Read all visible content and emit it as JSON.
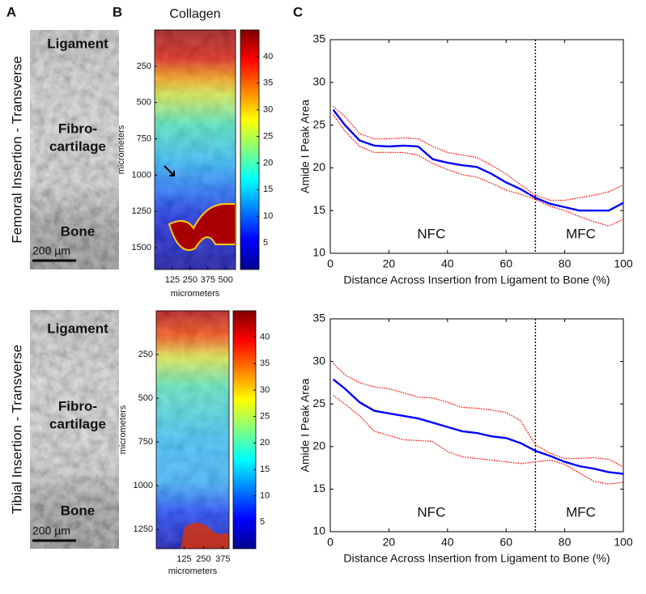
{
  "panel_labels": [
    "A",
    "B",
    "C"
  ],
  "histology": [
    {
      "side_label": "Femoral Insertion - Transverse",
      "regions": [
        "Ligament",
        "Fibro-",
        "cartilage",
        "Bone"
      ],
      "scale_bar": "200 µm"
    },
    {
      "side_label": "Tibial Insertion - Transverse",
      "regions": [
        "Ligament",
        "Fibro-",
        "cartilage",
        "Bone"
      ],
      "scale_bar": "200 µm"
    }
  ],
  "collagen_title": "Collagen",
  "heatmaps": [
    {
      "ylabel": "micrometers",
      "xlabel": "micrometers",
      "ylim": [
        0,
        1650
      ],
      "yticks": [
        250,
        500,
        750,
        1000,
        1250,
        1500
      ],
      "xlim": [
        0,
        570
      ],
      "xticks": [
        125,
        250,
        375,
        500
      ],
      "clim": [
        0,
        45
      ],
      "colorbar_ticks": [
        5,
        10,
        15,
        20,
        25,
        30,
        35,
        40
      ]
    },
    {
      "ylabel": "micrometers",
      "xlabel": "micrometers",
      "ylim": [
        0,
        1360
      ],
      "yticks": [
        250,
        500,
        750,
        1000,
        1250
      ],
      "xlim": [
        -55,
        415
      ],
      "xticks": [
        125,
        250,
        375
      ],
      "clim": [
        0,
        45
      ],
      "colorbar_ticks": [
        5,
        10,
        15,
        20,
        25,
        30,
        35,
        40
      ]
    }
  ],
  "chart_data": [
    {
      "type": "line",
      "x_label": "Distance Across Insertion from Ligament to Bone (%)",
      "y_label": "Amide I Peak Area",
      "xlim": [
        0,
        100
      ],
      "xticks": [
        0,
        20,
        40,
        60,
        80,
        100
      ],
      "ylim": [
        10,
        35
      ],
      "yticks": [
        10,
        15,
        20,
        25,
        30,
        35
      ],
      "vline": 70,
      "annotations": [
        "NFC",
        "MFC"
      ],
      "x": [
        1,
        5,
        10,
        15,
        20,
        25,
        30,
        35,
        40,
        45,
        50,
        55,
        60,
        65,
        70,
        75,
        80,
        85,
        90,
        95,
        100
      ],
      "series": [
        {
          "color": "#ff0000",
          "style": "dotted",
          "values": [
            27.2,
            26,
            24,
            23.4,
            23.4,
            23.5,
            23.4,
            22.5,
            21.8,
            21.5,
            21.2,
            20.3,
            19.3,
            18,
            16.8,
            16.2,
            16.2,
            16.5,
            16.8,
            17.2,
            18
          ]
        },
        {
          "color": "#ff0000",
          "style": "dotted",
          "values": [
            26.2,
            24.3,
            22.5,
            21.8,
            21.8,
            21.8,
            21.5,
            20.5,
            19.8,
            19.2,
            18.9,
            18.2,
            17.4,
            16.9,
            16.3,
            15.5,
            15,
            14.3,
            13.7,
            13.2,
            14
          ]
        },
        {
          "color": "#0000ff",
          "style": "solid",
          "values": [
            26.8,
            25,
            23.2,
            22.6,
            22.5,
            22.6,
            22.5,
            21,
            20.6,
            20.3,
            20.1,
            19.3,
            18.3,
            17.5,
            16.5,
            15.8,
            15.4,
            15,
            15,
            15,
            15.9
          ]
        }
      ]
    },
    {
      "type": "line",
      "x_label": "Distance Across Insertion from Ligament to Bone (%)",
      "y_label": "Amide I Peak Area",
      "xlim": [
        0,
        100
      ],
      "xticks": [
        0,
        20,
        40,
        60,
        80,
        100
      ],
      "ylim": [
        10,
        35
      ],
      "yticks": [
        10,
        15,
        20,
        25,
        30,
        35
      ],
      "vline": 70,
      "annotations": [
        "NFC",
        "MFC"
      ],
      "x": [
        1,
        5,
        10,
        15,
        20,
        25,
        30,
        35,
        40,
        45,
        50,
        55,
        60,
        65,
        70,
        75,
        80,
        85,
        90,
        95,
        100
      ],
      "series": [
        {
          "color": "#ff0000",
          "style": "dotted",
          "values": [
            29.8,
            28.4,
            27.5,
            27,
            26.8,
            26.3,
            25.8,
            25.7,
            25.2,
            24.6,
            24.5,
            24.3,
            24,
            23,
            20.2,
            19.2,
            18.6,
            18.6,
            18.7,
            18.5,
            17.6
          ]
        },
        {
          "color": "#ff0000",
          "style": "dotted",
          "values": [
            26,
            25,
            23.6,
            21.8,
            21.3,
            20.8,
            20.7,
            20.6,
            19.4,
            18.8,
            18.6,
            18.4,
            18.2,
            18,
            18.2,
            18.4,
            17.9,
            16.9,
            15.9,
            15.6,
            15.8
          ]
        },
        {
          "color": "#0000ff",
          "style": "solid",
          "values": [
            27.9,
            26.8,
            25.2,
            24.2,
            23.9,
            23.6,
            23.3,
            22.8,
            22.3,
            21.8,
            21.6,
            21.2,
            21,
            20.4,
            19.5,
            18.9,
            18.2,
            17.7,
            17.4,
            17,
            16.8
          ]
        }
      ]
    }
  ]
}
